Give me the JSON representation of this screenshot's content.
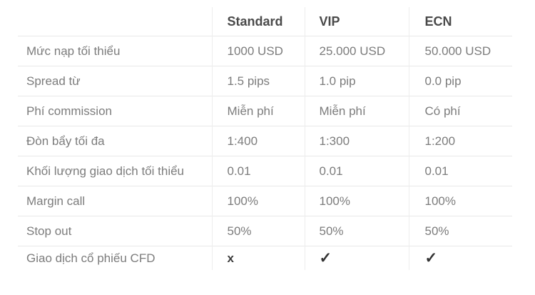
{
  "colors": {
    "background": "#ffffff",
    "header_text": "#4a4a4a",
    "body_text": "#7c7c7c",
    "row_line": "#e9e9e9",
    "column_line": "#ededed",
    "mark": "#333333"
  },
  "table": {
    "columns": [
      "",
      "Standard",
      "VIP",
      "ECN"
    ],
    "rows": [
      {
        "label": "Mức nạp tối thiểu",
        "values": [
          "1000 USD",
          "25.000 USD",
          "50.000 USD"
        ]
      },
      {
        "label": "Spread từ",
        "values": [
          "1.5 pips",
          "1.0 pip",
          "0.0 pip"
        ]
      },
      {
        "label": "Phí commission",
        "values": [
          "Miễn phí",
          "Miễn phí",
          "Có phí"
        ]
      },
      {
        "label": "Đòn bẩy tối đa",
        "values": [
          "1:400",
          "1:300",
          "1:200"
        ]
      },
      {
        "label": "Khối lượng giao dịch tối thiểu",
        "values": [
          "0.01",
          "0.01",
          "0.01"
        ]
      },
      {
        "label": "Margin call",
        "values": [
          "100%",
          "100%",
          "100%"
        ]
      },
      {
        "label": "Stop out",
        "values": [
          "50%",
          "50%",
          "50%"
        ]
      },
      {
        "label": "Giao dịch cổ phiếu CFD",
        "values": [
          "x",
          "✓",
          "✓"
        ]
      }
    ]
  }
}
